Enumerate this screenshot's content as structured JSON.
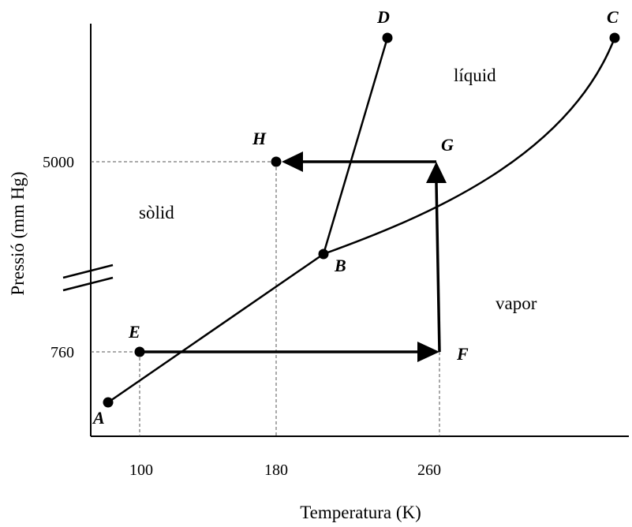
{
  "diagram": {
    "axis_labels": {
      "x": "Temperatura (K)",
      "y": "Pressió (mm Hg)"
    },
    "x_ticks": [
      "100",
      "180",
      "260"
    ],
    "y_ticks": [
      "760",
      "5000"
    ],
    "regions": {
      "solid": "sòlid",
      "liquid": "líquid",
      "vapor": "vapor"
    },
    "points": {
      "A": "A",
      "B": "B",
      "C": "C",
      "D": "D",
      "E": "E",
      "F": "F",
      "G": "G",
      "H": "H"
    },
    "path": [
      "E",
      "F",
      "G",
      "H"
    ],
    "colors": {
      "line": "#000000",
      "guide": "#555555"
    }
  }
}
